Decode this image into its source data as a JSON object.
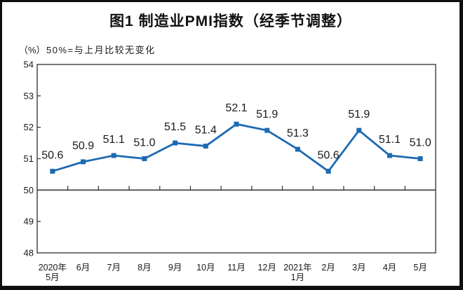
{
  "title": "图1 制造业PMI指数（经季节调整）",
  "unit_label": "（%）",
  "axis_note": "50%=与上月比较无变化",
  "colors": {
    "line": "#1d6ab3",
    "marker": "#1d6ab3",
    "axis": "#3c3c3c",
    "text": "#1a1a1a",
    "frame": "#0f0f0f"
  },
  "chart_data": {
    "type": "line",
    "title": "图1 制造业PMI指数（经季节调整）",
    "ylabel": "（%）",
    "note": "50%=与上月比较无变化",
    "categories": [
      "2020年|5月",
      "6月",
      "7月",
      "8月",
      "9月",
      "10月",
      "11月",
      "12月",
      "2021年|1月",
      "2月",
      "3月",
      "4月",
      "5月"
    ],
    "values": [
      50.6,
      50.9,
      51.1,
      51.0,
      51.5,
      51.4,
      52.1,
      51.9,
      51.3,
      50.6,
      51.9,
      51.1,
      51.0
    ],
    "data_labels": [
      "50.6",
      "50.9",
      "51.1",
      "51.0",
      "51.5",
      "51.4",
      "52.1",
      "51.9",
      "51.3",
      "50.6",
      "51.9",
      "51.1",
      "51.0"
    ],
    "ylim": [
      48,
      54
    ],
    "yticks": [
      54,
      53,
      52,
      51,
      50,
      49,
      48
    ],
    "reference_line": 50,
    "grid": false,
    "legend": false,
    "marker": "square"
  }
}
